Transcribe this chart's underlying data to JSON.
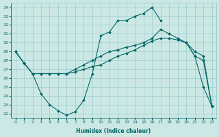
{
  "xlabel": "Humidex (Indice chaleur)",
  "background_color": "#cce8e4",
  "grid_color": "#99cccc",
  "line_color": "#006666",
  "xlim": [
    -0.5,
    23.5
  ],
  "ylim": [
    21.5,
    34.5
  ],
  "xticks": [
    0,
    1,
    2,
    3,
    4,
    5,
    6,
    7,
    8,
    9,
    10,
    11,
    12,
    13,
    14,
    15,
    16,
    17,
    18,
    19,
    20,
    21,
    22,
    23
  ],
  "yticks": [
    22,
    23,
    24,
    25,
    26,
    27,
    28,
    29,
    30,
    31,
    32,
    33,
    34
  ],
  "line1_x": [
    0,
    1,
    2,
    3,
    4,
    5,
    6,
    7,
    8,
    9,
    10,
    11,
    12,
    13,
    14,
    15,
    16,
    17,
    18,
    19,
    20,
    21,
    22,
    23
  ],
  "line1_y": [
    29.0,
    27.7,
    26.5,
    26.5,
    26.5,
    26.5,
    26.5,
    26.7,
    27.0,
    27.3,
    27.5,
    28.0,
    28.5,
    28.8,
    29.2,
    29.7,
    30.2,
    30.5,
    30.5,
    30.3,
    30.0,
    29.0,
    28.5,
    22.8
  ],
  "line2_x": [
    0,
    1,
    2,
    3,
    4,
    5,
    6,
    7,
    8,
    9,
    10,
    11,
    12,
    13,
    14,
    15,
    16,
    17,
    18,
    19,
    20,
    21,
    22,
    23
  ],
  "line2_y": [
    29.0,
    27.7,
    26.5,
    26.5,
    26.5,
    26.5,
    26.5,
    27.0,
    27.5,
    28.0,
    28.5,
    29.0,
    29.2,
    29.5,
    29.7,
    30.0,
    30.5,
    31.5,
    31.0,
    30.5,
    30.0,
    28.5,
    28.0,
    22.8
  ],
  "line3_x": [
    0,
    1,
    2,
    3,
    4,
    5,
    6,
    7,
    8,
    9,
    10,
    11,
    12,
    13,
    14,
    15,
    16,
    17
  ],
  "line3_y": [
    29.0,
    27.7,
    26.5,
    24.2,
    23.0,
    22.3,
    21.8,
    22.2,
    23.5,
    26.5,
    30.8,
    31.2,
    32.5,
    32.5,
    33.0,
    33.3,
    34.0,
    32.5
  ],
  "line4_x": [
    20,
    21,
    22,
    23
  ],
  "line4_y": [
    30.0,
    28.5,
    25.0,
    22.8
  ]
}
